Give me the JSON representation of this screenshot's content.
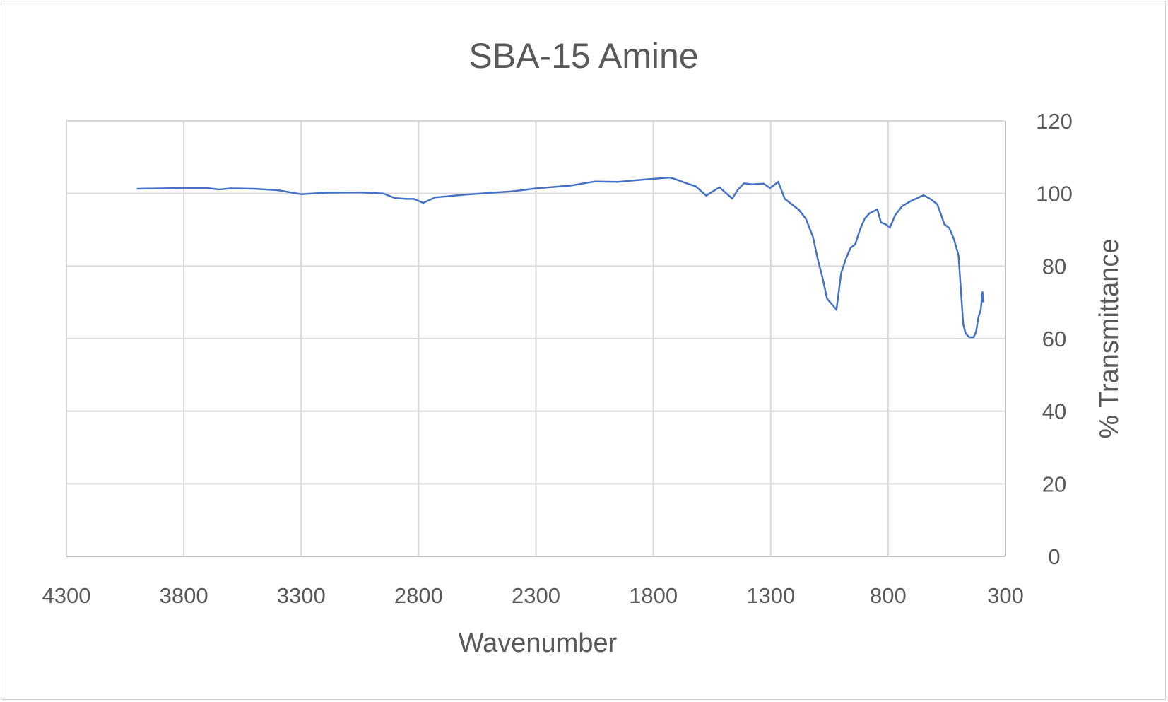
{
  "chart_data": {
    "type": "line",
    "title": "SBA-15 Amine",
    "xlabel": "Wavenumber",
    "ylabel": "% Transmittance",
    "xlim": [
      4300,
      300
    ],
    "ylim": [
      0,
      120
    ],
    "x_reversed": true,
    "y_axis_side": "right",
    "grid": true,
    "x_ticks": [
      "4300",
      "3800",
      "3300",
      "2800",
      "2300",
      "1800",
      "1300",
      "800",
      "300"
    ],
    "y_ticks": [
      "0",
      "20",
      "40",
      "60",
      "80",
      "100",
      "120"
    ],
    "line_color": "#4472C4",
    "series": [
      {
        "x": [
          4000,
          3800,
          3700,
          3650,
          3600,
          3500,
          3400,
          3300,
          3200,
          3050,
          2950,
          2900,
          2850,
          2820,
          2780,
          2730,
          2600,
          2400,
          2300,
          2150,
          2050,
          1950,
          1850,
          1730,
          1700,
          1650,
          1620,
          1575,
          1518,
          1464,
          1440,
          1414,
          1380,
          1330,
          1303,
          1268,
          1240,
          1180,
          1150,
          1120,
          1100,
          1080,
          1060,
          1020,
          1000,
          980,
          960,
          940,
          920,
          900,
          880,
          846,
          830,
          810,
          792,
          770,
          740,
          700,
          649,
          620,
          590,
          560,
          540,
          520,
          500,
          480,
          470,
          455,
          435,
          425,
          415,
          405,
          398,
          395
        ],
        "y": [
          101.3,
          101.5,
          101.5,
          101.1,
          101.4,
          101.3,
          100.9,
          99.8,
          100.2,
          100.3,
          100,
          98.7,
          98.5,
          98.5,
          97.4,
          98.9,
          99.7,
          100.6,
          101.4,
          102.2,
          103.3,
          103.2,
          103.8,
          104.4,
          103.8,
          102.6,
          102,
          99.4,
          101.7,
          98.6,
          101,
          102.8,
          102.5,
          102.7,
          101.5,
          103.2,
          98.5,
          95.5,
          93,
          88,
          82,
          77,
          71,
          68,
          78,
          82,
          85,
          86,
          90,
          93,
          94.5,
          95.6,
          92,
          91.5,
          90.6,
          94,
          96.5,
          98,
          99.5,
          98.5,
          97,
          91.5,
          90.5,
          87.5,
          83,
          64,
          61.5,
          60.4,
          60.4,
          62,
          66,
          68,
          73,
          70
        ]
      }
    ]
  }
}
